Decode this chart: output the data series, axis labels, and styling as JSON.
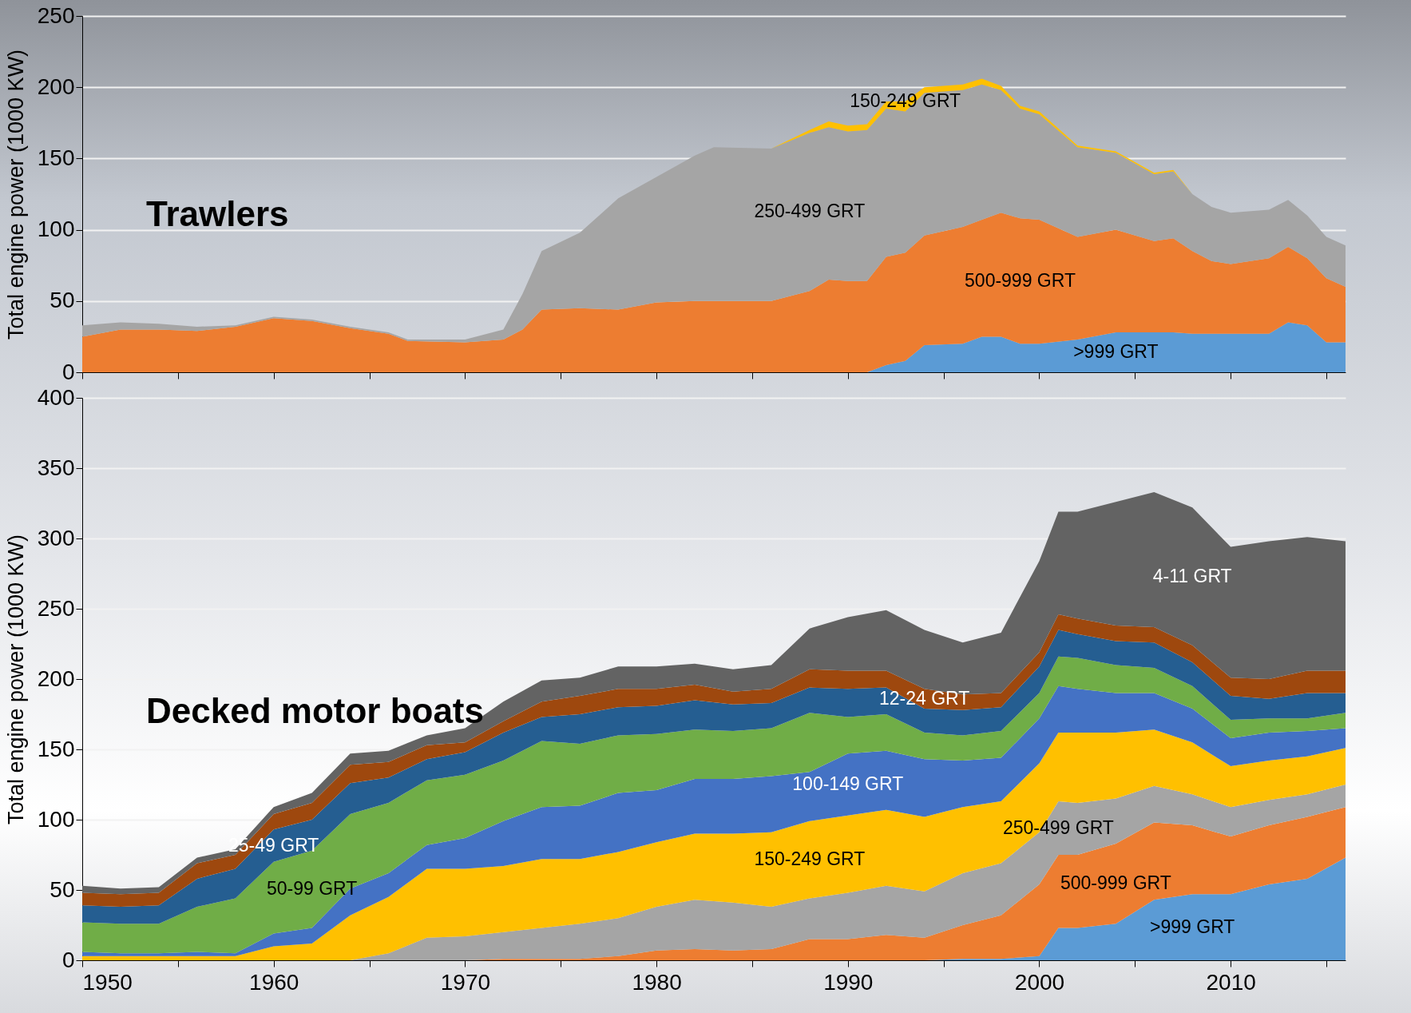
{
  "chart_data": [
    {
      "type": "area",
      "stacked": true,
      "title": "Trawlers",
      "ylabel": "Total engine power (1000 KW)",
      "x": [
        1950,
        1952,
        1954,
        1956,
        1958,
        1960,
        1962,
        1964,
        1966,
        1967,
        1970,
        1972,
        1973,
        1974,
        1976,
        1978,
        1980,
        1982,
        1983,
        1986,
        1988,
        1989,
        1990,
        1991,
        1992,
        1993,
        1994,
        1996,
        1997,
        1998,
        1999,
        2000,
        2002,
        2004,
        2006,
        2007,
        2008,
        2009,
        2010,
        2012,
        2013,
        2014,
        2015,
        2016
      ],
      "series": [
        {
          "name": ">999 GRT",
          "color": "#5b9bd5",
          "values": [
            0,
            0,
            0,
            0,
            0,
            0,
            0,
            0,
            0,
            0,
            0,
            0,
            0,
            0,
            0,
            0,
            0,
            0,
            0,
            0,
            0,
            0,
            0,
            0,
            5,
            8,
            19,
            20,
            25,
            25,
            20,
            20,
            23,
            28,
            28,
            28,
            27,
            27,
            27,
            27,
            35,
            33,
            21,
            21
          ]
        },
        {
          "name": "500-999 GRT",
          "color": "#ed7d31",
          "values": [
            25,
            30,
            30,
            29,
            32,
            38,
            36,
            31,
            27,
            22,
            21,
            23,
            30,
            44,
            45,
            44,
            49,
            50,
            50,
            50,
            57,
            65,
            64,
            64,
            76,
            76,
            77,
            82,
            82,
            87,
            88,
            87,
            72,
            72,
            64,
            66,
            58,
            51,
            49,
            53,
            53,
            47,
            45,
            39
          ]
        },
        {
          "name": "250-499 GRT",
          "color": "#a5a5a5",
          "values": [
            8,
            5,
            4,
            3,
            1,
            1,
            1,
            1,
            1,
            1,
            2,
            7,
            25,
            41,
            53,
            78,
            88,
            102,
            108,
            107,
            111,
            107,
            105,
            106,
            104,
            99,
            100,
            96,
            95,
            86,
            77,
            74,
            63,
            54,
            47,
            47,
            40,
            38,
            36,
            34,
            33,
            30,
            29,
            29
          ]
        },
        {
          "name": "150-249 GRT",
          "color": "#ffc000",
          "values": [
            0,
            0,
            0,
            0,
            0,
            0,
            0,
            0,
            0,
            0,
            0,
            0,
            0,
            0,
            0,
            0,
            0,
            0,
            0,
            0,
            2,
            4,
            4,
            4,
            5,
            7,
            4,
            4,
            4,
            3,
            2,
            2,
            1,
            1,
            1,
            1,
            0,
            0,
            0,
            0,
            0,
            0,
            0,
            0
          ]
        }
      ],
      "xlim": [
        1950,
        2016
      ],
      "xticks": [
        1950,
        {
          "value": 1955,
          "label": null
        },
        1960,
        {
          "value": 1965,
          "label": null
        },
        1970,
        {
          "value": 1975,
          "label": null
        },
        1980,
        {
          "value": 1985,
          "label": null
        },
        1990,
        {
          "value": 1995,
          "label": null
        },
        2000,
        {
          "value": 2005,
          "label": null
        },
        2010,
        {
          "value": 2015,
          "label": null
        }
      ],
      "ylim": [
        0,
        250
      ],
      "yticks": [
        0,
        50,
        100,
        150,
        200,
        250
      ],
      "grid": "y",
      "tick_labels": "y"
    },
    {
      "type": "area",
      "stacked": true,
      "title": "Decked motor boats",
      "ylabel": "Total engine power (1000 KW)",
      "x": [
        1950,
        1952,
        1954,
        1956,
        1958,
        1960,
        1962,
        1964,
        1966,
        1968,
        1970,
        1972,
        1974,
        1976,
        1978,
        1980,
        1982,
        1984,
        1986,
        1988,
        1990,
        1992,
        1994,
        1996,
        1998,
        2000,
        2001,
        2002,
        2004,
        2006,
        2008,
        2010,
        2012,
        2014,
        2016
      ],
      "series": [
        {
          "name": ">999 GRT",
          "color": "#5b9bd5",
          "values": [
            0,
            0,
            0,
            0,
            0,
            0,
            0,
            0,
            0,
            0,
            0,
            0,
            0,
            0,
            0,
            0,
            0,
            0,
            0,
            0,
            0,
            0,
            0,
            1,
            1,
            3,
            23,
            23,
            26,
            43,
            47,
            47,
            54,
            58,
            73
          ]
        },
        {
          "name": "500-999 GRT",
          "color": "#ed7d31",
          "values": [
            0,
            0,
            0,
            0,
            0,
            0,
            0,
            0,
            0,
            0,
            0,
            1,
            1,
            1,
            3,
            7,
            8,
            7,
            8,
            15,
            15,
            18,
            16,
            24,
            31,
            51,
            52,
            52,
            57,
            55,
            49,
            41,
            42,
            44,
            36
          ]
        },
        {
          "name": "250-499 GRT",
          "color": "#a5a5a5",
          "values": [
            0,
            0,
            0,
            0,
            0,
            0,
            0,
            0,
            5,
            16,
            17,
            19,
            22,
            25,
            27,
            31,
            35,
            34,
            30,
            29,
            33,
            35,
            33,
            37,
            37,
            37,
            38,
            37,
            32,
            26,
            22,
            21,
            18,
            16,
            16
          ]
        },
        {
          "name": "150-249 GRT",
          "color": "#ffc000",
          "values": [
            3,
            3,
            3,
            3,
            3,
            10,
            12,
            32,
            40,
            49,
            48,
            47,
            49,
            46,
            47,
            46,
            47,
            49,
            53,
            55,
            55,
            54,
            53,
            47,
            44,
            49,
            49,
            50,
            47,
            40,
            37,
            29,
            28,
            27,
            26
          ]
        },
        {
          "name": "100-149 GRT",
          "color": "#4472c4",
          "values": [
            3,
            2,
            2,
            3,
            2,
            9,
            11,
            19,
            17,
            17,
            22,
            32,
            37,
            38,
            42,
            37,
            39,
            39,
            40,
            35,
            44,
            42,
            41,
            33,
            31,
            32,
            33,
            31,
            28,
            26,
            24,
            20,
            20,
            18,
            14
          ]
        },
        {
          "name": "50-99 GRT",
          "color": "#70ad47",
          "values": [
            21,
            21,
            21,
            32,
            39,
            51,
            55,
            53,
            50,
            46,
            45,
            43,
            47,
            44,
            41,
            40,
            35,
            34,
            34,
            42,
            26,
            26,
            19,
            18,
            19,
            18,
            21,
            22,
            20,
            18,
            16,
            13,
            10,
            9,
            11
          ]
        },
        {
          "name": "25-49 GRT",
          "color": "#255e91",
          "values": [
            12,
            12,
            13,
            20,
            21,
            23,
            22,
            22,
            18,
            15,
            16,
            20,
            17,
            21,
            20,
            20,
            21,
            19,
            18,
            18,
            20,
            19,
            17,
            18,
            17,
            19,
            19,
            17,
            17,
            18,
            17,
            17,
            14,
            18,
            14
          ]
        },
        {
          "name": "12-24 GRT",
          "color": "#9e480e",
          "values": [
            9,
            9,
            9,
            11,
            10,
            11,
            12,
            13,
            11,
            10,
            7,
            8,
            11,
            13,
            13,
            12,
            11,
            9,
            10,
            13,
            13,
            12,
            14,
            11,
            10,
            10,
            11,
            11,
            11,
            11,
            12,
            13,
            14,
            16,
            16
          ]
        },
        {
          "name": "4-11 GRT",
          "color": "#636363",
          "values": [
            5,
            4,
            4,
            4,
            4,
            5,
            7,
            8,
            8,
            7,
            10,
            14,
            15,
            13,
            16,
            16,
            15,
            16,
            17,
            29,
            38,
            43,
            42,
            37,
            43,
            65,
            73,
            76,
            88,
            96,
            98,
            93,
            98,
            95,
            92
          ]
        }
      ],
      "xlim": [
        1950,
        2016
      ],
      "xticks": [
        1950,
        {
          "value": 1955,
          "label": null
        },
        1960,
        {
          "value": 1965,
          "label": null
        },
        1970,
        {
          "value": 1975,
          "label": null
        },
        1980,
        {
          "value": 1985,
          "label": null
        },
        1990,
        {
          "value": 1995,
          "label": null
        },
        2000,
        {
          "value": 2005,
          "label": null
        },
        2010,
        {
          "value": 2015,
          "label": null
        }
      ],
      "ylim": [
        0,
        400
      ],
      "yticks": [
        0,
        50,
        100,
        150,
        200,
        250,
        300,
        350,
        400
      ],
      "grid": "y"
    }
  ]
}
